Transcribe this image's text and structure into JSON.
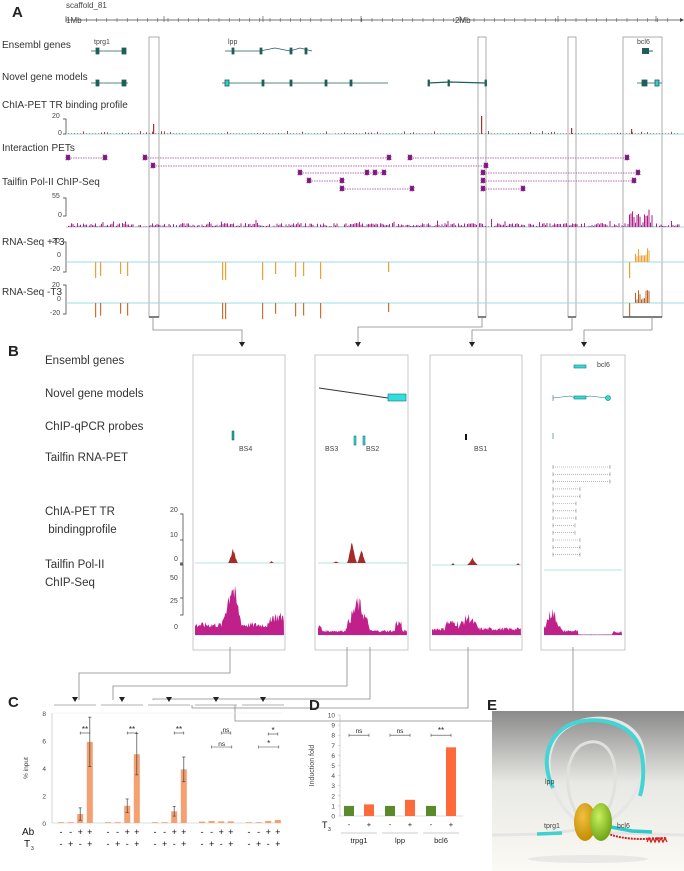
{
  "panels": {
    "A": "A",
    "B": "B",
    "C": "C",
    "D": "D",
    "E": "E"
  },
  "panel_a": {
    "scaffold": "scaffold_81",
    "ruler_start": "1Mb",
    "ruler_mid": "2Mb",
    "tracks": [
      "Ensembl genes",
      "Novel gene models",
      "ChIA-PET TR binding profile",
      "Interaction PETs",
      "Tailfin Pol-II ChIP-Seq",
      "RNA-Seq +T3",
      "RNA-Seq -T3"
    ],
    "genes": [
      "tprg1",
      "lpp",
      "bcl6"
    ],
    "axis": {
      "chia_max": "20",
      "chia_min": "0",
      "pol_max": "55",
      "pol_min": "0",
      "rna_plus_top": "20",
      "rna_plus_mid": "0",
      "rna_plus_bot": "-20",
      "rna_minus_top": "20",
      "rna_minus_mid": "0",
      "rna_minus_bot": "-20"
    }
  },
  "panel_b": {
    "tracks": [
      "Ensembl genes",
      "Novel gene models",
      "ChIP-qPCR probes",
      "Tailfin RNA-PET",
      "ChIA-PET TR bindingprofile",
      "Tailfin Pol-II ChIP-Seq"
    ],
    "track_chia_line1": "ChIA-PET TR",
    "track_chia_line2": " bindingprofile",
    "track_pol_line1": "Tailfin Pol-II",
    "track_pol_line2": "ChIP-Seq",
    "probes": [
      "BS4",
      "BS3",
      "BS2",
      "BS1"
    ],
    "gene": "bcl6",
    "chia_axis": [
      "20",
      "10",
      "0"
    ],
    "pol_axis": [
      "50",
      "25",
      "0"
    ]
  },
  "chart_data": [
    {
      "type": "bar",
      "panel": "C",
      "ylabel": "% input",
      "ylim": [
        0,
        8
      ],
      "yticks": [
        "0",
        "2",
        "4",
        "6",
        "8"
      ],
      "row_labels": {
        "ab": "Ab",
        "t3": "T3"
      },
      "groups": [
        {
          "values": [
            0.05,
            0.03,
            0.65,
            5.9
          ],
          "errors": [
            0,
            0,
            0.45,
            1.8
          ],
          "sig": [
            {
              "label": "**",
              "type": "pair"
            }
          ]
        },
        {
          "values": [
            0.03,
            0.03,
            1.25,
            5.0
          ],
          "errors": [
            0,
            0,
            0.5,
            1.5
          ],
          "sig": [
            {
              "label": "**",
              "type": "pair"
            }
          ]
        },
        {
          "values": [
            0.03,
            0.02,
            0.85,
            3.9
          ],
          "errors": [
            0,
            0,
            0.35,
            0.9
          ],
          "sig": [
            {
              "label": "**",
              "type": "pair"
            }
          ]
        },
        {
          "values": [
            0.1,
            0.15,
            0.12,
            0.12
          ],
          "errors": [
            0,
            0,
            0,
            0
          ],
          "sig": [
            {
              "label": "ns",
              "type": "pair"
            },
            {
              "label": "ns",
              "type": "wide"
            }
          ]
        },
        {
          "values": [
            0.03,
            0.03,
            0.15,
            0.22
          ],
          "errors": [
            0,
            0,
            0,
            0
          ],
          "sig": [
            {
              "label": "*",
              "type": "pair"
            },
            {
              "label": "*",
              "type": "wide"
            }
          ]
        }
      ],
      "ab": [
        "-",
        "-",
        "+",
        "+"
      ],
      "t3": [
        "-",
        "+",
        "-",
        "+"
      ],
      "bar_color": "#f4a070"
    },
    {
      "type": "bar",
      "panel": "D",
      "ylabel": "Induction fold",
      "ylim": [
        0,
        10
      ],
      "yticks": [
        "0",
        "1",
        "2",
        "3",
        "4",
        "5",
        "6",
        "7",
        "8",
        "9",
        "10"
      ],
      "row_label": "T3",
      "categories": [
        "trpg1",
        "lpp",
        "bcl6"
      ],
      "series": [
        {
          "name": "-",
          "values": [
            1.0,
            1.0,
            1.0
          ],
          "color": "#5a8a2a"
        },
        {
          "name": "+",
          "values": [
            1.15,
            1.6,
            6.8
          ],
          "color": "#ff6a3a"
        }
      ],
      "significance": [
        "ns",
        "ns",
        "**"
      ]
    }
  ],
  "panel_e": {
    "labels": {
      "lpp": "lpp",
      "tprg1": "tprg1",
      "bcl6": "bcl6"
    }
  }
}
